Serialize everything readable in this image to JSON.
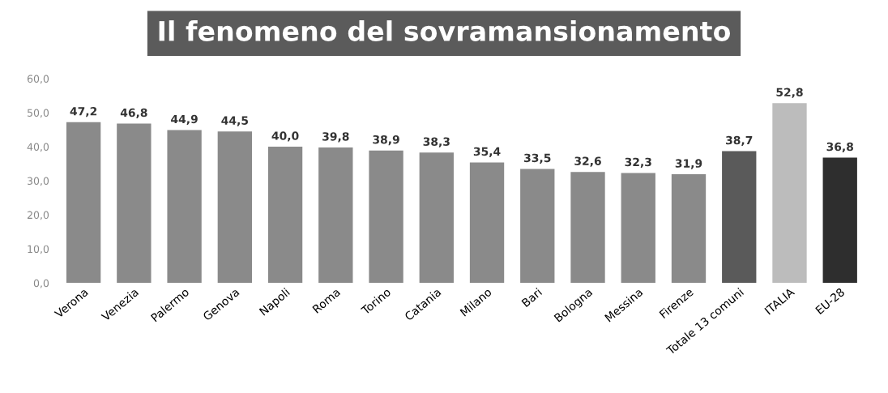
{
  "chart_data": {
    "type": "bar",
    "title": "Il fenomeno del sovramansionamento",
    "categories": [
      "Verona",
      "Venezia",
      "Palermo",
      "Genova",
      "Napoli",
      "Roma",
      "Torino",
      "Catania",
      "Milano",
      "Bari",
      "Bologna",
      "Messina",
      "Firenze",
      "Totale 13 comuni",
      "ITALIA",
      "EU-28"
    ],
    "values": [
      47.2,
      46.8,
      44.9,
      44.5,
      40.0,
      39.8,
      38.9,
      38.3,
      35.4,
      33.5,
      32.6,
      32.3,
      31.9,
      38.7,
      52.8,
      36.8
    ],
    "value_labels": [
      "47,2",
      "46,8",
      "44,9",
      "44,5",
      "40,0",
      "39,8",
      "38,9",
      "38,3",
      "35,4",
      "33,5",
      "32,6",
      "32,3",
      "31,9",
      "38,7",
      "52,8",
      "36,8"
    ],
    "colors": [
      "#8a8a8a",
      "#8a8a8a",
      "#8a8a8a",
      "#8a8a8a",
      "#8a8a8a",
      "#8a8a8a",
      "#8a8a8a",
      "#8a8a8a",
      "#8a8a8a",
      "#8a8a8a",
      "#8a8a8a",
      "#8a8a8a",
      "#8a8a8a",
      "#5a5a5a",
      "#bcbcbc",
      "#2e2e2e"
    ],
    "ylim": [
      0,
      60
    ],
    "yticks": [
      {
        "value": 0,
        "label": "0,0"
      },
      {
        "value": 10,
        "label": "10,0"
      },
      {
        "value": 20,
        "label": "20,0"
      },
      {
        "value": 30,
        "label": "30,0"
      },
      {
        "value": 40,
        "label": "40,0"
      },
      {
        "value": 50,
        "label": "50,0"
      },
      {
        "value": 60,
        "label": "60,0"
      }
    ],
    "grid": false
  }
}
